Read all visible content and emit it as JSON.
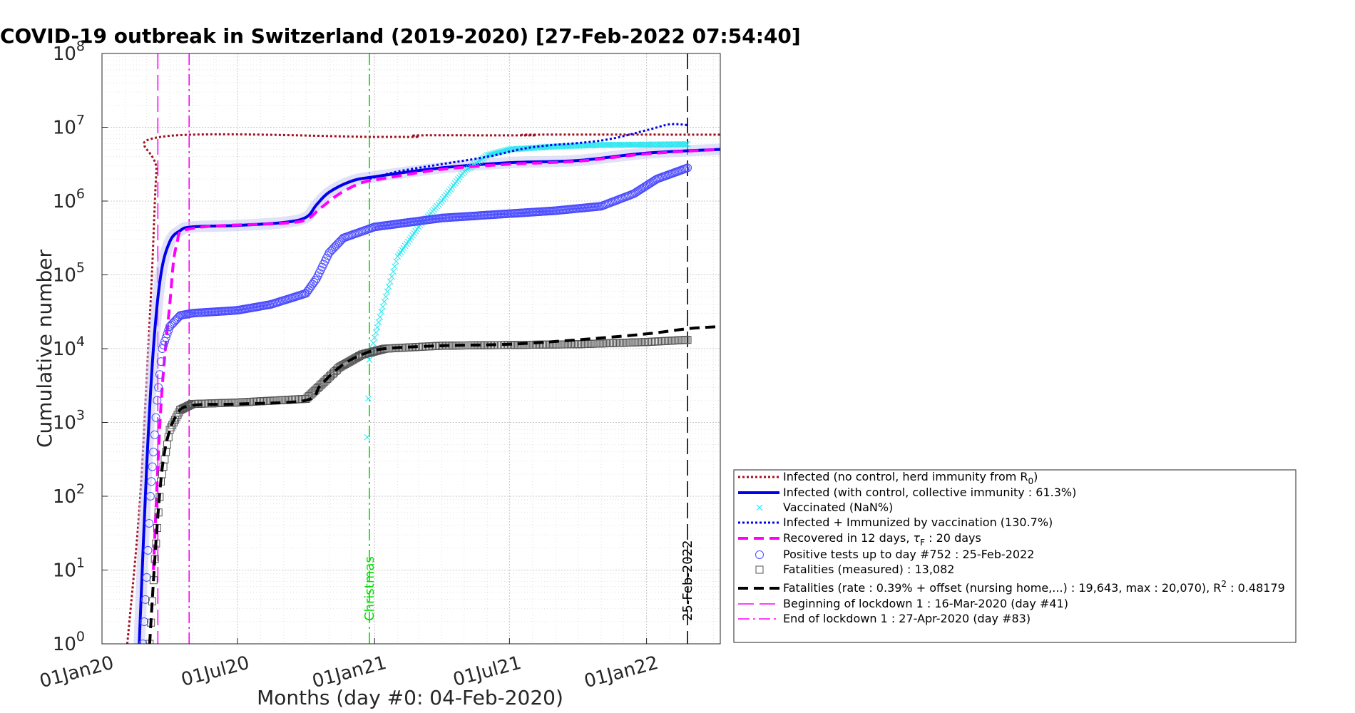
{
  "chart_data": {
    "type": "line",
    "title": "COVID-19 outbreak in Switzerland (2019-2020) [27-Feb-2022 07:54:40]",
    "xlabel": "Months (day #0: 04-Feb-2020)",
    "ylabel": "Cumulative number",
    "y_scale": "log",
    "ylim_exponents": [
      0,
      8
    ],
    "y_tick_exponents": [
      0,
      1,
      2,
      3,
      4,
      5,
      6,
      7,
      8
    ],
    "y_tick_base": "10",
    "xlim": [
      "2020-01-01",
      "2022-04-10"
    ],
    "x_ticks": [
      {
        "date": "2020-01-01",
        "label": "01Jan20"
      },
      {
        "date": "2020-07-01",
        "label": "01Jul20"
      },
      {
        "date": "2021-01-01",
        "label": "01Jan21"
      },
      {
        "date": "2021-07-01",
        "label": "01Jul21"
      },
      {
        "date": "2022-01-01",
        "label": "01Jan22"
      }
    ],
    "grid": true,
    "legend_position": "bottom-right, outside plot",
    "vertical_lines": [
      {
        "date": "2020-03-16",
        "label": "",
        "style": "dashed",
        "color": "#ff00ff"
      },
      {
        "date": "2020-04-27",
        "label": "",
        "style": "dashdot",
        "color": "#ff00ff"
      },
      {
        "date": "2020-12-25",
        "label": "Christmas",
        "style": "dashdot",
        "color": "#00dd00"
      },
      {
        "date": "2022-02-25",
        "label": "25-Feb-2022",
        "style": "dashed",
        "color": "#000000"
      }
    ],
    "series": [
      {
        "name": "Infected (no control, herd immunity from R",
        "name_sub": "0",
        "name_suffix": ")",
        "style": "dotted",
        "color": "#a0101e",
        "width": 3,
        "points": [
          [
            "2020-02-04",
            0
          ],
          [
            "2020-02-20",
            1.8
          ],
          [
            "2020-03-01",
            3.6
          ],
          [
            "2020-03-08",
            5.0
          ],
          [
            "2020-03-14",
            6.4
          ],
          [
            "2020-03-20",
            6.87
          ],
          [
            "2020-12-31",
            6.87
          ],
          [
            "2021-02-28",
            6.87
          ],
          [
            "2021-03-01",
            6.89
          ],
          [
            "2021-07-31",
            6.89
          ],
          [
            "2021-08-01",
            6.9
          ],
          [
            "2022-04-10",
            6.9
          ]
        ]
      },
      {
        "name": "Infected (with control, collective immunity : 61.3%)",
        "style": "solid",
        "color": "#0000ee",
        "width": 4,
        "halo": true,
        "points": [
          [
            "2020-02-20",
            0
          ],
          [
            "2020-03-01",
            2.4
          ],
          [
            "2020-03-10",
            4.0
          ],
          [
            "2020-03-20",
            5.0
          ],
          [
            "2020-04-01",
            5.45
          ],
          [
            "2020-04-15",
            5.6
          ],
          [
            "2020-05-01",
            5.65
          ],
          [
            "2020-07-01",
            5.67
          ],
          [
            "2020-09-01",
            5.71
          ],
          [
            "2020-10-01",
            5.78
          ],
          [
            "2020-10-15",
            5.95
          ],
          [
            "2020-11-01",
            6.12
          ],
          [
            "2020-12-01",
            6.27
          ],
          [
            "2021-01-01",
            6.33
          ],
          [
            "2021-04-01",
            6.45
          ],
          [
            "2021-07-01",
            6.52
          ],
          [
            "2021-10-01",
            6.55
          ],
          [
            "2022-01-01",
            6.65
          ],
          [
            "2022-04-10",
            6.7
          ]
        ]
      },
      {
        "name": "Vaccinated (NaN%)",
        "style": "markers-x",
        "color": "#22e5f0",
        "width": 1,
        "points": [
          [
            "2020-12-22",
            2.8
          ],
          [
            "2020-12-25",
            3.85
          ],
          [
            "2021-01-01",
            4.15
          ],
          [
            "2021-01-10",
            4.5
          ],
          [
            "2021-02-01",
            5.25
          ],
          [
            "2021-03-01",
            5.65
          ],
          [
            "2021-04-01",
            6.0
          ],
          [
            "2021-05-01",
            6.4
          ],
          [
            "2021-06-01",
            6.62
          ],
          [
            "2021-07-01",
            6.7
          ],
          [
            "2021-09-01",
            6.74
          ],
          [
            "2021-11-01",
            6.76
          ],
          [
            "2022-02-25",
            6.77
          ]
        ]
      },
      {
        "name": "Infected + Immunized by vaccination (130.7%)",
        "style": "dotted",
        "color": "#0000ee",
        "width": 3,
        "points": [
          [
            "2020-12-25",
            6.3
          ],
          [
            "2021-02-01",
            6.4
          ],
          [
            "2021-04-01",
            6.5
          ],
          [
            "2021-06-01",
            6.6
          ],
          [
            "2021-08-01",
            6.73
          ],
          [
            "2021-11-01",
            6.82
          ],
          [
            "2022-01-01",
            6.96
          ],
          [
            "2022-02-01",
            7.04
          ],
          [
            "2022-02-25",
            7.03
          ]
        ]
      },
      {
        "name": "Recovered in 12 days, ",
        "name_tau": "τ",
        "name_tau_sub": "F",
        "name_suffix": " : 20 days",
        "style": "dashed",
        "color": "#ff00ff",
        "width": 4,
        "points": [
          [
            "2020-03-10",
            1.0
          ],
          [
            "2020-03-20",
            3.2
          ],
          [
            "2020-04-01",
            4.6
          ],
          [
            "2020-04-10",
            5.4
          ],
          [
            "2020-05-01",
            5.63
          ],
          [
            "2020-09-01",
            5.7
          ],
          [
            "2020-10-01",
            5.75
          ],
          [
            "2020-10-20",
            5.9
          ],
          [
            "2020-11-15",
            6.1
          ],
          [
            "2020-12-15",
            6.25
          ],
          [
            "2021-01-10",
            6.3
          ],
          [
            "2021-04-01",
            6.43
          ],
          [
            "2021-07-01",
            6.5
          ],
          [
            "2021-10-01",
            6.54
          ],
          [
            "2022-01-01",
            6.64
          ],
          [
            "2022-04-10",
            6.7
          ]
        ]
      },
      {
        "name": "Positive tests up to day #752 : 25-Feb-2022",
        "style": "markers-circle",
        "color": "#4a4aff",
        "width": 1,
        "points": [
          [
            "2020-02-25",
            0
          ],
          [
            "2020-03-01",
            0.9
          ],
          [
            "2020-03-06",
            2.0
          ],
          [
            "2020-03-10",
            2.6
          ],
          [
            "2020-03-15",
            3.3
          ],
          [
            "2020-03-22",
            4.0
          ],
          [
            "2020-04-01",
            4.3
          ],
          [
            "2020-04-15",
            4.45
          ],
          [
            "2020-05-01",
            4.48
          ],
          [
            "2020-07-01",
            4.52
          ],
          [
            "2020-08-15",
            4.6
          ],
          [
            "2020-10-01",
            4.75
          ],
          [
            "2020-10-15",
            4.95
          ],
          [
            "2020-11-01",
            5.3
          ],
          [
            "2020-11-20",
            5.5
          ],
          [
            "2021-01-01",
            5.65
          ],
          [
            "2021-04-01",
            5.77
          ],
          [
            "2021-07-01",
            5.83
          ],
          [
            "2021-09-01",
            5.87
          ],
          [
            "2021-11-01",
            5.93
          ],
          [
            "2021-12-15",
            6.1
          ],
          [
            "2022-01-15",
            6.3
          ],
          [
            "2022-02-25",
            6.45
          ]
        ]
      },
      {
        "name": "Fatalities (measured) : 13,082",
        "style": "markers-square",
        "color": "#555555",
        "width": 1,
        "points": [
          [
            "2020-03-05",
            0
          ],
          [
            "2020-03-12",
            1.15
          ],
          [
            "2020-03-20",
            2.2
          ],
          [
            "2020-04-01",
            2.9
          ],
          [
            "2020-04-15",
            3.17
          ],
          [
            "2020-05-01",
            3.25
          ],
          [
            "2020-07-01",
            3.27
          ],
          [
            "2020-10-01",
            3.32
          ],
          [
            "2020-10-20",
            3.5
          ],
          [
            "2020-11-15",
            3.75
          ],
          [
            "2020-12-15",
            3.92
          ],
          [
            "2021-01-15",
            4.0
          ],
          [
            "2021-04-01",
            4.04
          ],
          [
            "2021-07-01",
            4.05
          ],
          [
            "2021-10-01",
            4.06
          ],
          [
            "2022-01-01",
            4.09
          ],
          [
            "2022-02-25",
            4.12
          ]
        ]
      },
      {
        "name": "Fatalities (rate : 0.39% + offset (nursing home,...) : 19,643, max : 20,070), R",
        "name_sup": "2",
        "name_suffix": " : 0.48179",
        "style": "dashed",
        "color": "#000000",
        "width": 4,
        "points": [
          [
            "2020-03-05",
            0
          ],
          [
            "2020-03-15",
            1.6
          ],
          [
            "2020-03-25",
            2.6
          ],
          [
            "2020-04-10",
            3.1
          ],
          [
            "2020-05-01",
            3.23
          ],
          [
            "2020-07-01",
            3.25
          ],
          [
            "2020-10-01",
            3.3
          ],
          [
            "2020-10-20",
            3.5
          ],
          [
            "2020-11-15",
            3.75
          ],
          [
            "2020-12-15",
            3.92
          ],
          [
            "2021-01-15",
            4.0
          ],
          [
            "2021-04-01",
            4.04
          ],
          [
            "2021-07-01",
            4.06
          ],
          [
            "2021-10-01",
            4.12
          ],
          [
            "2022-01-01",
            4.2
          ],
          [
            "2022-02-25",
            4.27
          ],
          [
            "2022-04-10",
            4.3
          ]
        ]
      }
    ],
    "legend_extra": [
      {
        "name": "Beginning of lockdown 1 : 16-Mar-2020 (day #41)",
        "style": "dashed-thin",
        "color": "#ff00ff"
      },
      {
        "name": "End of lockdown 1 : 27-Apr-2020 (day #83)",
        "style": "dashdot-thin",
        "color": "#ff00ff"
      }
    ]
  }
}
